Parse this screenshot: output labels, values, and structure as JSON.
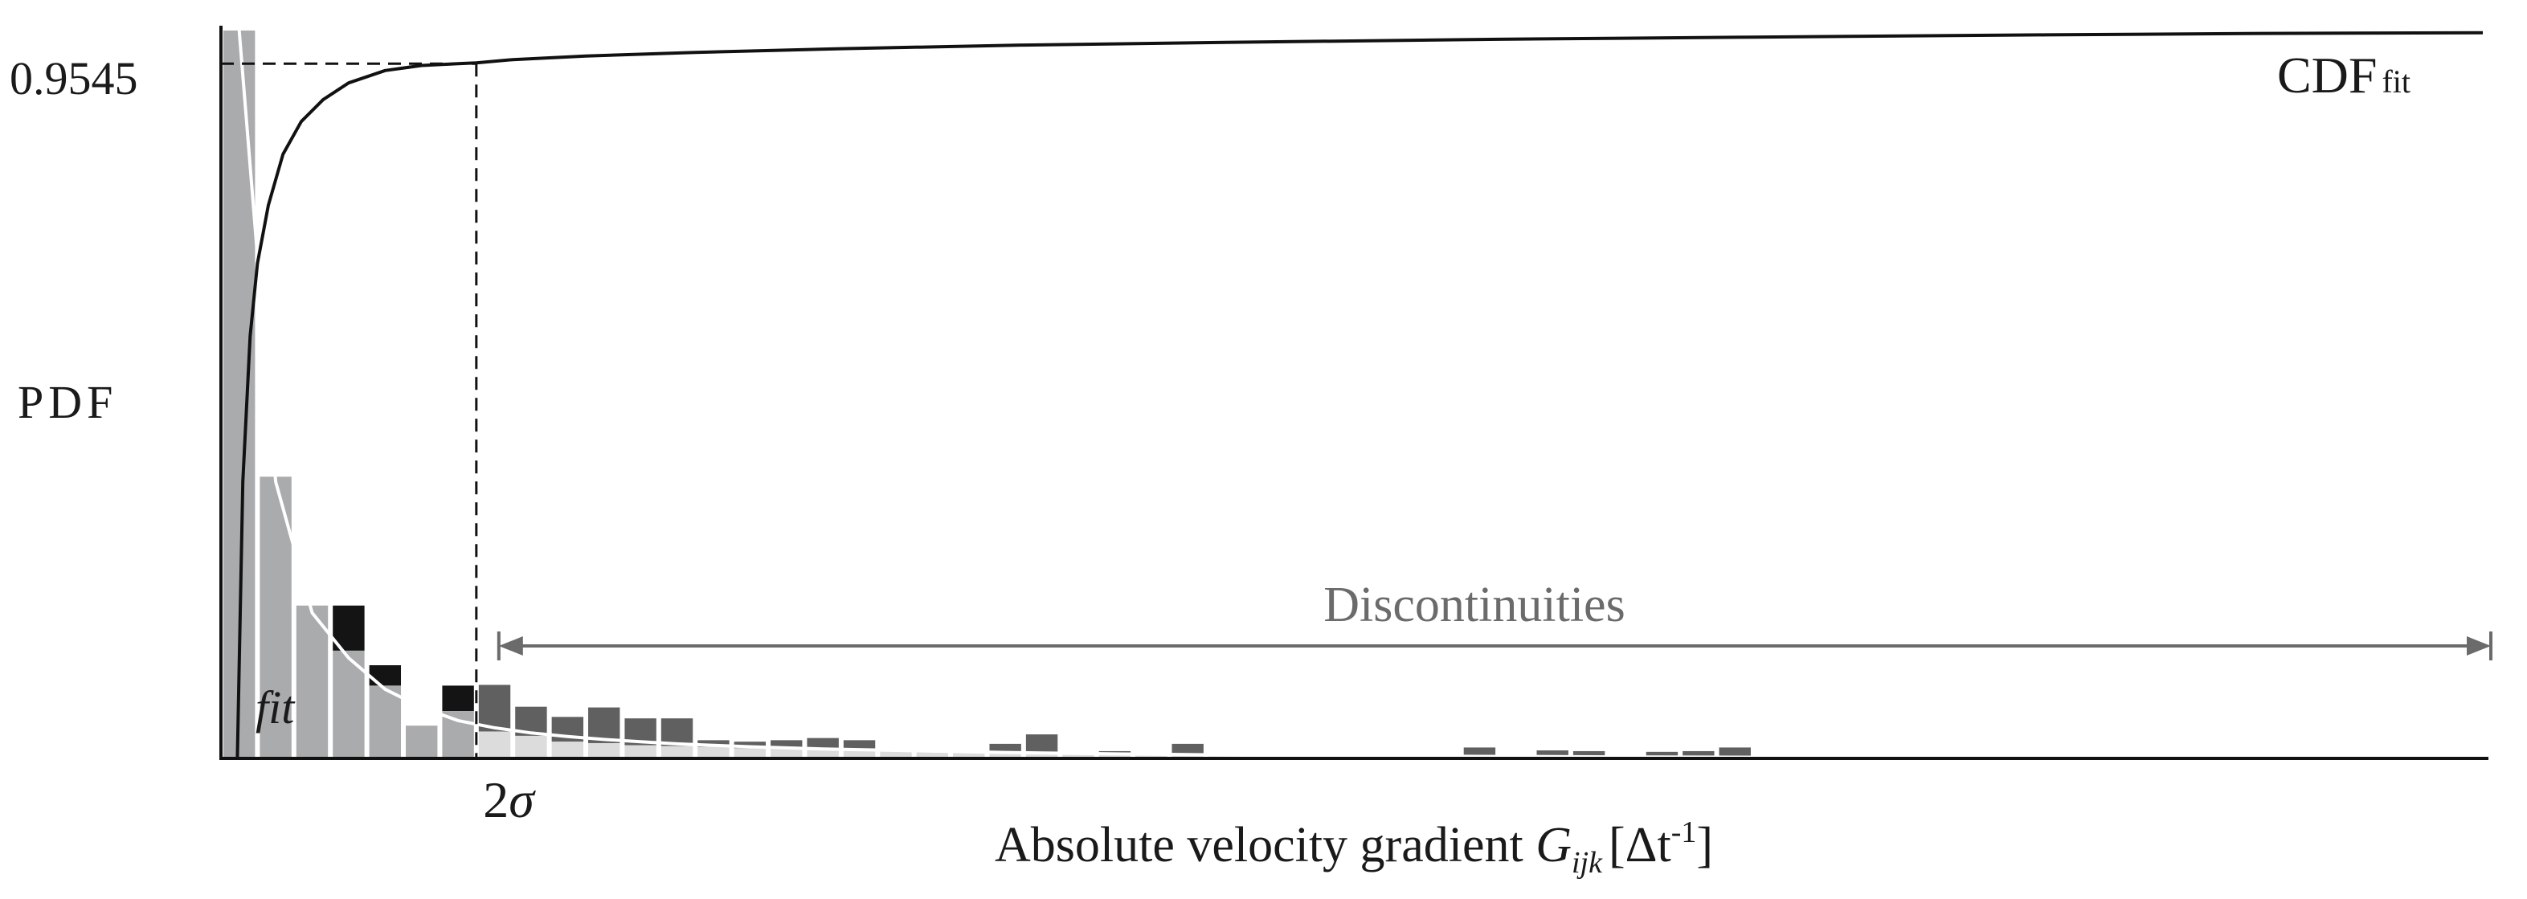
{
  "chart_data": {
    "type": "bar",
    "title": "",
    "xlabel": {
      "prefix": "Absolute velocity gradient ",
      "symbol": "G",
      "subscript": "ijk",
      "unit_open": "[Δt",
      "unit_sup": "-1",
      "unit_close": "]"
    },
    "ylabel": "PDF",
    "cdf_label": {
      "main": "CDF",
      "sub": "fit"
    },
    "fit_label": "fit",
    "threshold": {
      "label_num": "2",
      "label_sym": "σ",
      "bin_position": 7,
      "cdf_value_label": "0.9545",
      "cdf_value": 0.9545
    },
    "discontinuities_label": "Discontinuities",
    "x_range": [
      0,
      62
    ],
    "y_range": [
      0,
      1
    ],
    "colors": {
      "hist": "#a9abad",
      "hist_above_fit": "#141414",
      "discontinuity": "#606060",
      "fit_fill": "#dcdcdc",
      "cdf": "#111111",
      "annotation": "#6b6b6b"
    },
    "series": [
      {
        "name": "",
        "values": [
          1.0,
          0.387,
          0.21,
          0.148,
          0.1,
          0.045,
          0.065,
          0.037,
          0.031,
          0.023,
          0.021,
          0.018,
          0.017,
          0.016,
          0.014,
          0.013,
          0.012,
          0.011,
          0.01,
          0.009,
          0.008,
          0.0075,
          0.007,
          0.0065,
          0.006,
          0.0055,
          0.005,
          0.0045,
          0.004,
          0.0037,
          0.0034,
          0.0031,
          0.0029,
          0.0027,
          0.0025,
          0.0023,
          0.0021,
          0.0019,
          0.0018,
          0.0017,
          0.0016,
          0.0015,
          0.0014,
          0.0013,
          0.0012,
          0.0011,
          0.001,
          0.0009,
          0.0008,
          0.0007,
          0.0006,
          0.0005,
          0.0005,
          0.0004,
          0.0004,
          0.0003,
          0.0003,
          0.0003,
          0.0002,
          0.0002,
          0.0002,
          0.0002
        ]
      },
      {
        "name": "",
        "values": [
          1.0,
          0.387,
          0.21,
          0.21,
          0.128,
          0.045,
          0.1,
          0.101,
          0.071,
          0.057,
          0.07,
          0.055,
          0.055,
          0.025,
          0.023,
          0.025,
          0.028,
          0.025,
          0.01,
          0.008,
          0.0075,
          0.02,
          0.033,
          0.005,
          0.01,
          0.005,
          0.02,
          0.0,
          0.0,
          0.0,
          0.0,
          0.0,
          0.0,
          0.0,
          0.015,
          0.0,
          0.011,
          0.01,
          0.0,
          0.009,
          0.01,
          0.015,
          0.0,
          0.0,
          0.0,
          0.0,
          0.0,
          0.0,
          0.0,
          0.0,
          0.0,
          0.0,
          0.0,
          0.0,
          0.0,
          0.0,
          0.0,
          0.0,
          0.0,
          0.0,
          0.0,
          0.0
        ]
      },
      {
        "name": "",
        "values": [
          1.0,
          0.38,
          0.2,
          0.138,
          0.095,
          0.07,
          0.052,
          0.042,
          0.035,
          0.03,
          0.026,
          0.023,
          0.02,
          0.018,
          0.016,
          0.0145,
          0.013,
          0.012,
          0.011,
          0.01,
          0.009,
          0.0082,
          0.0075,
          0.0068,
          0.0062,
          0.0057,
          0.0052,
          0.0048,
          0.0044,
          0.0041,
          0.0038,
          0.0035,
          0.0032,
          0.003,
          0.0028,
          0.0026,
          0.0024,
          0.0022,
          0.002,
          0.0019,
          0.0018,
          0.0017,
          0.0016,
          0.0015,
          0.0014,
          0.0013,
          0.0012,
          0.0011,
          0.001,
          0.0009,
          0.0008,
          0.0008,
          0.0007,
          0.0007,
          0.0006,
          0.0006,
          0.0005,
          0.0005,
          0.0005,
          0.0004,
          0.0004,
          0.0004
        ]
      },
      {
        "name": "",
        "x": [
          0.45,
          0.6,
          0.8,
          1.0,
          1.3,
          1.7,
          2.2,
          2.8,
          3.5,
          4.5,
          5.5,
          6.5,
          7.0,
          8.0,
          10,
          13,
          17,
          22,
          28,
          35,
          42,
          50,
          56,
          62
        ],
        "values": [
          0.0,
          0.38,
          0.58,
          0.68,
          0.76,
          0.83,
          0.875,
          0.905,
          0.928,
          0.945,
          0.952,
          0.9545,
          0.9555,
          0.96,
          0.965,
          0.97,
          0.975,
          0.98,
          0.984,
          0.988,
          0.991,
          0.994,
          0.996,
          0.997
        ]
      }
    ]
  }
}
